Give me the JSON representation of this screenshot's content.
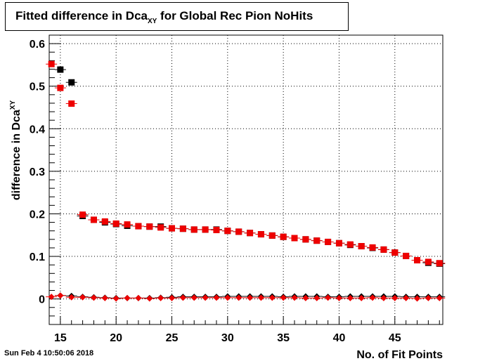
{
  "title": {
    "main": "Fitted difference in Dca",
    "sub": "XY",
    "rest": " for Global Rec Pion NoHits"
  },
  "timestamp": "Sun Feb  4 10:50:06 2018",
  "colors": {
    "black": "#000000",
    "red": "#ee0000",
    "grid": "#000000"
  },
  "chart_data": {
    "type": "scatter",
    "title": "Fitted difference in Dca_XY for Global Rec Pion NoHits",
    "xlabel": "No. of Fit Points",
    "ylabel": "difference in Dca",
    "ylabel_sub": "XY",
    "xlim": [
      14,
      49.3
    ],
    "ylim": [
      -0.06,
      0.62
    ],
    "xticks": [
      15,
      20,
      25,
      30,
      35,
      40,
      45
    ],
    "xtick_labels": [
      "15",
      "20",
      "25",
      "30",
      "35",
      "40",
      "45"
    ],
    "yticks": [
      0,
      0.1,
      0.2,
      0.3,
      0.4,
      0.5,
      0.6
    ],
    "ytick_labels": [
      "0",
      "0.1",
      "0.2",
      "0.3",
      "0.4",
      "0.5",
      "0.6"
    ],
    "grid": true,
    "series": [
      {
        "marker": "square",
        "color": "#000000",
        "x": [
          15,
          16,
          17,
          18,
          19,
          20,
          21,
          22,
          23,
          24,
          25,
          26,
          27,
          28,
          29,
          30,
          31,
          32,
          33,
          34,
          35,
          36,
          37,
          38,
          39,
          40,
          41,
          42,
          43,
          44,
          45,
          46,
          47,
          48,
          49
        ],
        "y": [
          0.539,
          0.509,
          0.195,
          0.186,
          0.18,
          0.176,
          0.172,
          0.171,
          0.17,
          0.17,
          0.166,
          0.165,
          0.163,
          0.163,
          0.163,
          0.16,
          0.158,
          0.155,
          0.152,
          0.149,
          0.146,
          0.143,
          0.14,
          0.137,
          0.134,
          0.131,
          0.127,
          0.124,
          0.12,
          0.116,
          0.109,
          0.101,
          0.091,
          0.085,
          0.083
        ]
      },
      {
        "marker": "square",
        "color": "#ee0000",
        "x": [
          14.2,
          15,
          16,
          17,
          18,
          19,
          20,
          21,
          22,
          23,
          24,
          25,
          26,
          27,
          28,
          29,
          30,
          31,
          32,
          33,
          34,
          35,
          36,
          37,
          38,
          39,
          40,
          41,
          42,
          43,
          44,
          45,
          46,
          47,
          48,
          49
        ],
        "y": [
          0.552,
          0.496,
          0.459,
          0.198,
          0.186,
          0.182,
          0.177,
          0.175,
          0.171,
          0.17,
          0.168,
          0.166,
          0.165,
          0.163,
          0.163,
          0.162,
          0.16,
          0.158,
          0.155,
          0.152,
          0.149,
          0.146,
          0.143,
          0.14,
          0.137,
          0.134,
          0.131,
          0.128,
          0.124,
          0.121,
          0.116,
          0.109,
          0.101,
          0.091,
          0.087,
          0.084
        ]
      },
      {
        "marker": "diamond",
        "color": "#000000",
        "x": [
          15,
          16,
          17,
          18,
          19,
          20,
          21,
          22,
          23,
          24,
          25,
          26,
          27,
          28,
          29,
          30,
          31,
          32,
          33,
          34,
          35,
          36,
          37,
          38,
          39,
          40,
          41,
          42,
          43,
          44,
          45,
          46,
          47,
          48,
          49
        ],
        "y": [
          0.008,
          0.007,
          0.005,
          0.004,
          0.003,
          0.002,
          0.002,
          0.002,
          0.002,
          0.003,
          0.004,
          0.005,
          0.005,
          0.005,
          0.005,
          0.006,
          0.006,
          0.006,
          0.006,
          0.006,
          0.005,
          0.006,
          0.006,
          0.006,
          0.005,
          0.005,
          0.006,
          0.006,
          0.006,
          0.006,
          0.006,
          0.005,
          0.005,
          0.005,
          0.005
        ]
      },
      {
        "marker": "diamond",
        "color": "#ee0000",
        "x": [
          14.2,
          15,
          16,
          17,
          18,
          19,
          20,
          21,
          22,
          23,
          24,
          25,
          26,
          27,
          28,
          29,
          30,
          31,
          32,
          33,
          34,
          35,
          36,
          37,
          38,
          39,
          40,
          41,
          42,
          43,
          44,
          45,
          46,
          47,
          48,
          49
        ],
        "y": [
          0.005,
          0.008,
          0.004,
          0.004,
          0.003,
          0.002,
          0.001,
          0.002,
          0.002,
          0.001,
          0.002,
          0.002,
          0.003,
          0.003,
          0.003,
          0.003,
          0.003,
          0.003,
          0.003,
          0.003,
          0.003,
          0.003,
          0.003,
          0.002,
          0.002,
          0.003,
          0.002,
          0.002,
          0.002,
          0.003,
          0.002,
          0.002,
          0.002,
          0.001,
          0.002,
          0.002
        ]
      }
    ]
  }
}
